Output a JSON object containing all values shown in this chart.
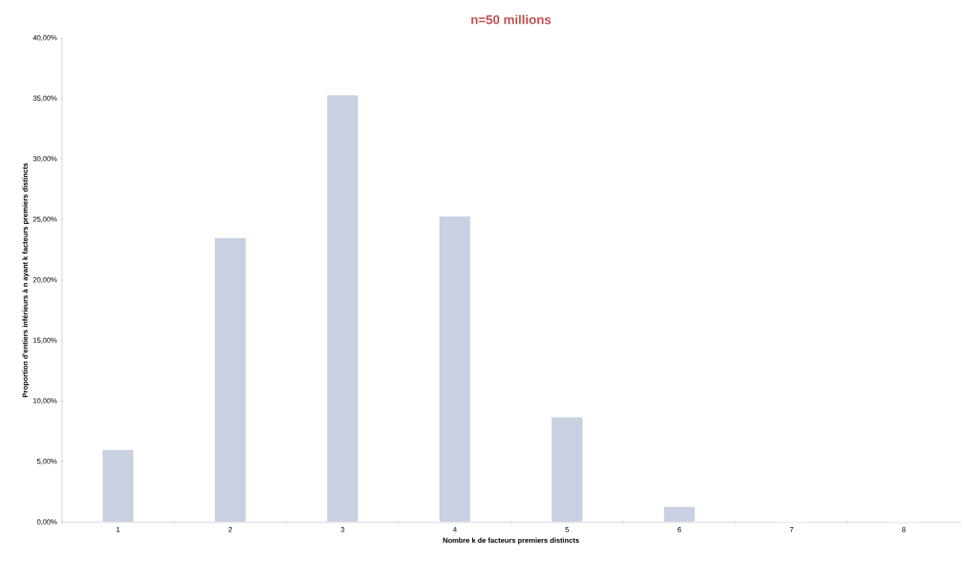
{
  "chart_data": {
    "type": "bar",
    "title": "n=50 millions",
    "xlabel": "Nombre k de facteurs premiers distincts",
    "ylabel": "Proportion d'entiers inférieurs à n ayant  k facteurs premiers distincts",
    "categories": [
      "1",
      "2",
      "3",
      "4",
      "5",
      "6",
      "7",
      "8"
    ],
    "values": [
      6.0,
      23.5,
      35.3,
      25.3,
      8.7,
      1.3,
      0,
      0
    ],
    "color": "#c8d0e2",
    "ylim": [
      0,
      40
    ],
    "yticks": [
      {
        "value": 0,
        "label": "0,00%"
      },
      {
        "value": 5,
        "label": "5,00%"
      },
      {
        "value": 10,
        "label": "10,00%"
      },
      {
        "value": 15,
        "label": "15,00%"
      },
      {
        "value": 20,
        "label": "20,00%"
      },
      {
        "value": 25,
        "label": "25,00%"
      },
      {
        "value": 30,
        "label": "30,00%"
      },
      {
        "value": 35,
        "label": "35,00%"
      },
      {
        "value": 40,
        "label": "40,00%"
      }
    ],
    "grid": false
  }
}
